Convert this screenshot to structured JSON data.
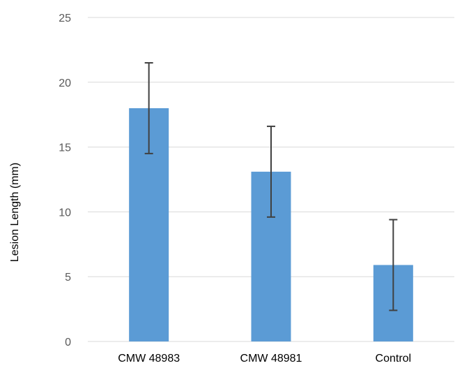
{
  "chart_data": {
    "type": "bar",
    "title": "",
    "xlabel": "",
    "ylabel": "Lesion Length (mm)",
    "categories": [
      "CMW 48983",
      "CMW 48981",
      "Control"
    ],
    "values": [
      18.0,
      13.1,
      5.9
    ],
    "error": [
      3.5,
      3.5,
      3.5
    ],
    "ylim": [
      0,
      25
    ],
    "yticks": [
      0,
      5,
      10,
      15,
      20,
      25
    ],
    "grid": true,
    "legend": "none",
    "colors": {
      "bar": "#5b9bd5",
      "error_bar": "#404040",
      "grid": "#d9d9d9"
    }
  }
}
